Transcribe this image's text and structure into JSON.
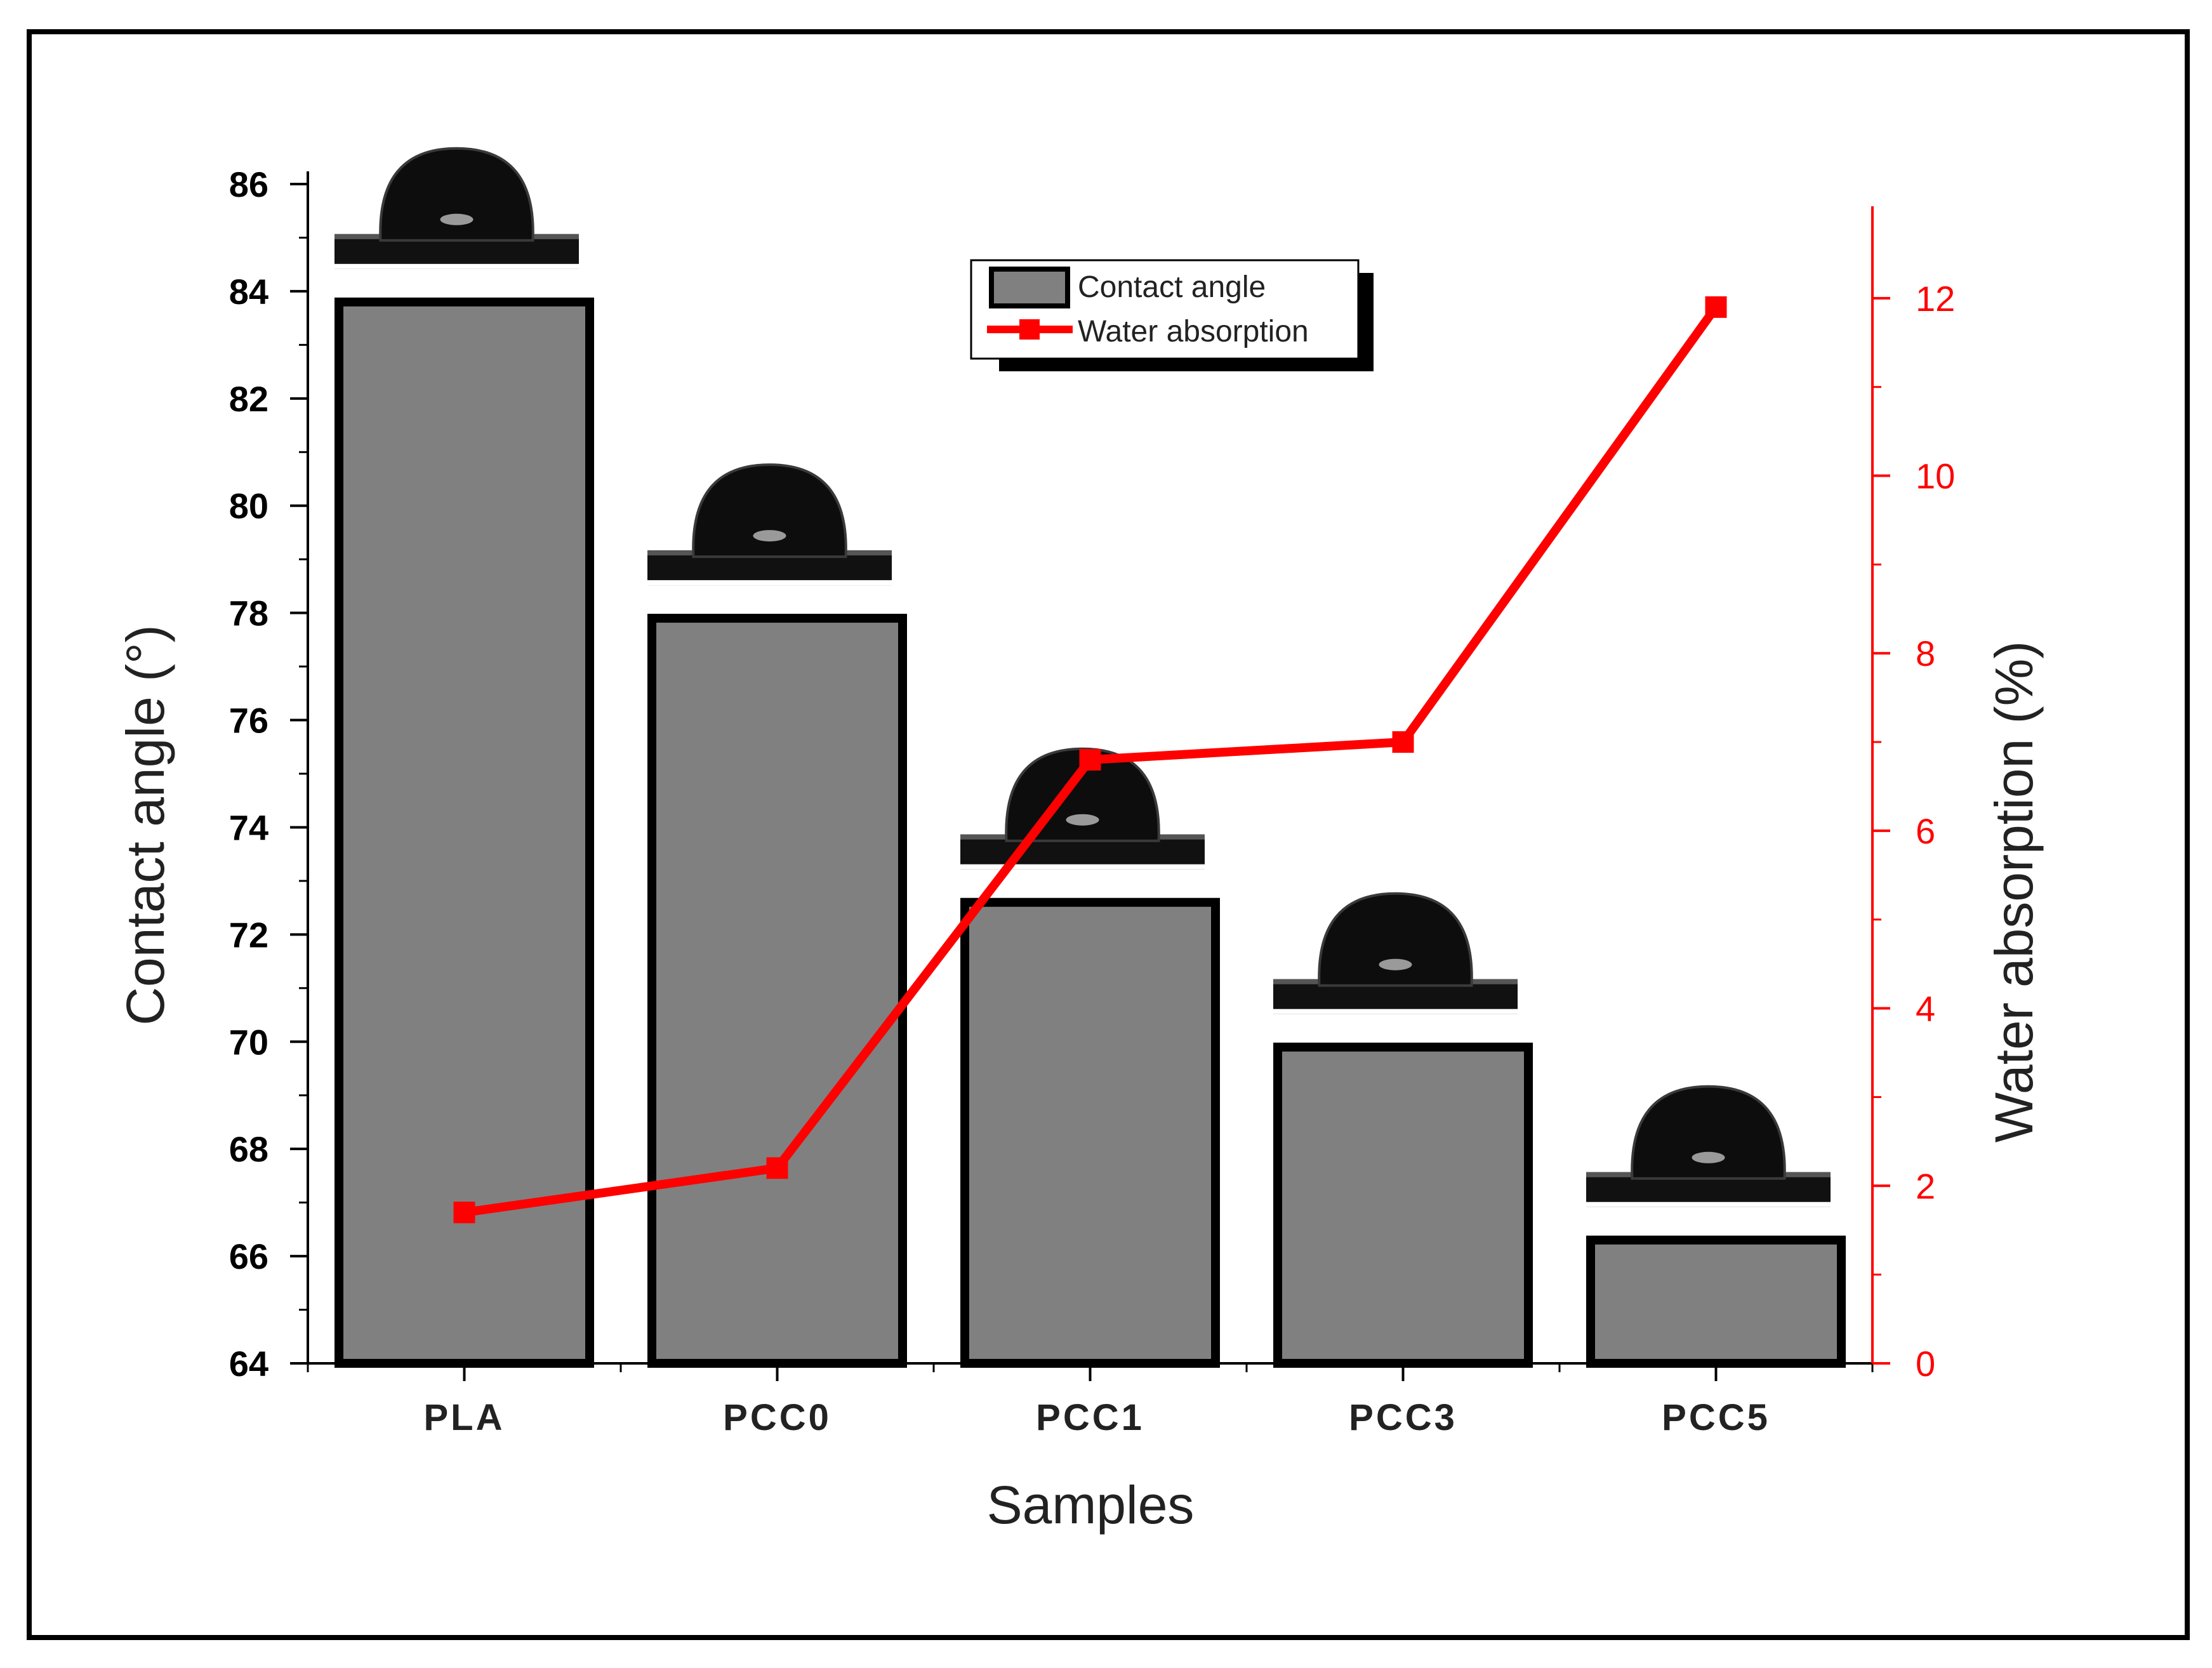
{
  "chart_data": {
    "type": "bar",
    "categories": [
      "PLA",
      "PCC0",
      "PCC1",
      "PCC3",
      "PCC5"
    ],
    "xlabel": "Samples",
    "ylabel": "Contact angle (°)",
    "ylim": [
      64,
      86
    ],
    "yticks": [
      64,
      66,
      68,
      70,
      72,
      74,
      76,
      78,
      80,
      82,
      84,
      86
    ],
    "y2label": "Water absorption (%)",
    "y2lim": [
      0,
      13
    ],
    "y2ticks": [
      0,
      2,
      4,
      6,
      8,
      10,
      12
    ],
    "grid": false,
    "legend_position": "top-center",
    "series": [
      {
        "name": "Contact angle",
        "type": "bar",
        "axis": "left",
        "values": [
          83.8,
          77.9,
          72.6,
          69.9,
          66.3
        ]
      },
      {
        "name": "Water absorption",
        "type": "line",
        "axis": "right",
        "marker": "square",
        "values": [
          1.7,
          2.2,
          6.8,
          7.0,
          11.9
        ]
      }
    ],
    "annotations": [
      "water-droplet-image",
      "water-droplet-image",
      "water-droplet-image",
      "water-droplet-image",
      "water-droplet-image"
    ]
  },
  "colors": {
    "bar_fill": "#808080",
    "bar_edge": "#000000",
    "line": "#ff0000",
    "right_axis": "#ff0000",
    "frame": "#000000"
  }
}
